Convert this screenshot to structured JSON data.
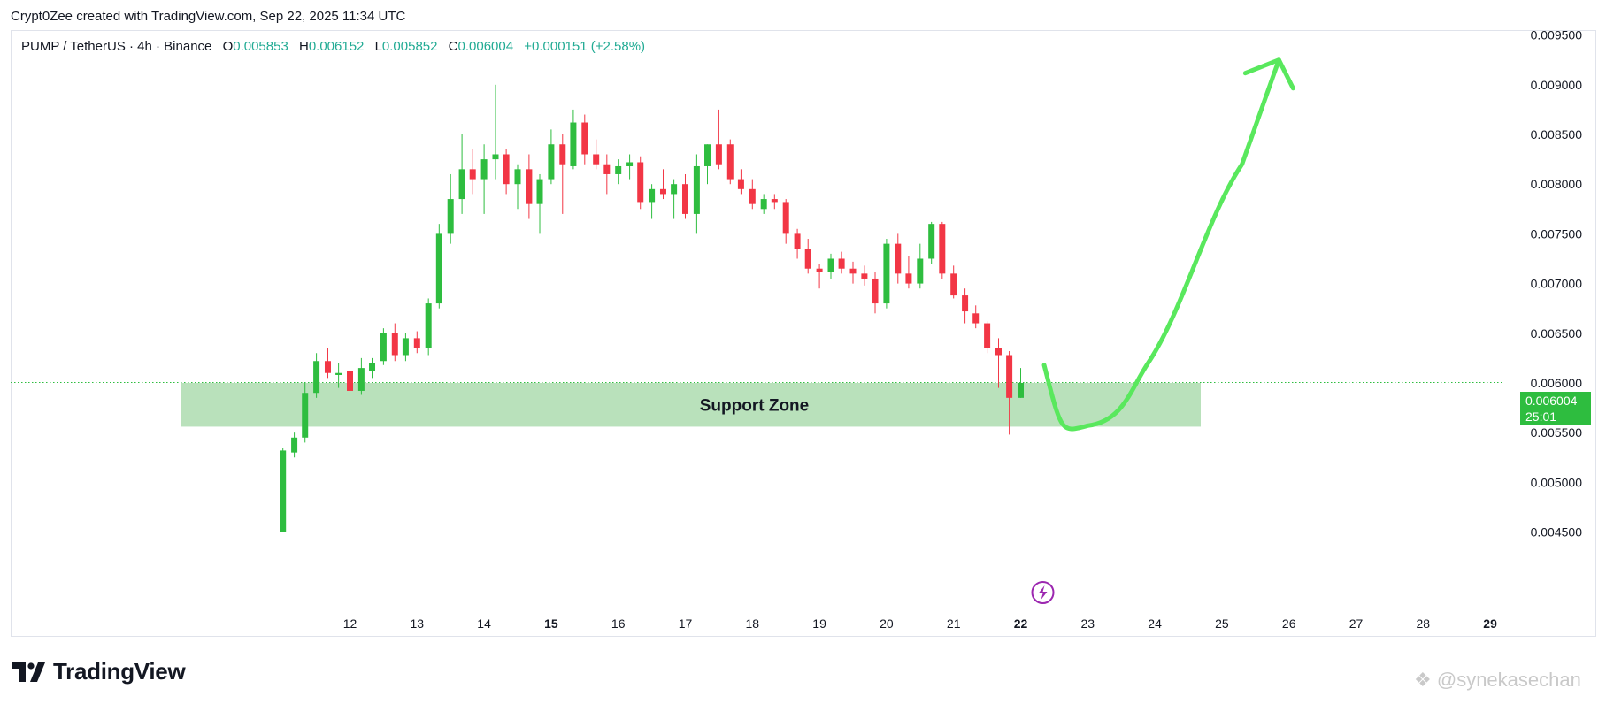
{
  "header": {
    "text": "Crypt0Zee created with TradingView.com, Sep 22, 2025 11:34 UTC"
  },
  "legend": {
    "symbol": "PUMP / TetherUS · 4h · Binance",
    "open_label": "O",
    "open": "0.005853",
    "high_label": "H",
    "high": "0.006152",
    "low_label": "L",
    "low": "0.005852",
    "close_label": "C",
    "close": "0.006004",
    "change": "+0.000151 (+2.58%)"
  },
  "price_box": {
    "price": "0.006004",
    "countdown": "25:01"
  },
  "footer": {
    "logo_text": "TradingView",
    "watermark": "@synekasechan"
  },
  "colors": {
    "up": "#2ebd3f",
    "down": "#f23645",
    "zone": "#b9e1bb",
    "arrow": "#59e85d",
    "event": "#9c27b0"
  },
  "chart_data": {
    "type": "candlestick",
    "interval": "4h",
    "ylim": [
      0.00398,
      0.00955
    ],
    "y_ticks": [
      "0.009500",
      "0.009000",
      "0.008500",
      "0.008000",
      "0.007500",
      "0.007000",
      "0.006500",
      "0.006000",
      "0.005500",
      "0.005000",
      "0.004500"
    ],
    "x_range": [
      11.55,
      29.3
    ],
    "x_ticks": [
      {
        "label": "12",
        "x": 12,
        "bold": false
      },
      {
        "label": "13",
        "x": 13,
        "bold": false
      },
      {
        "label": "14",
        "x": 14,
        "bold": false
      },
      {
        "label": "15",
        "x": 15,
        "bold": true
      },
      {
        "label": "16",
        "x": 16,
        "bold": false
      },
      {
        "label": "17",
        "x": 17,
        "bold": false
      },
      {
        "label": "18",
        "x": 18,
        "bold": false
      },
      {
        "label": "19",
        "x": 19,
        "bold": false
      },
      {
        "label": "20",
        "x": 20,
        "bold": false
      },
      {
        "label": "21",
        "x": 21,
        "bold": false
      },
      {
        "label": "22",
        "x": 22,
        "bold": true
      },
      {
        "label": "23",
        "x": 23,
        "bold": false
      },
      {
        "label": "24",
        "x": 24,
        "bold": false
      },
      {
        "label": "25",
        "x": 25,
        "bold": false
      },
      {
        "label": "26",
        "x": 26,
        "bold": false
      },
      {
        "label": "27",
        "x": 27,
        "bold": false
      },
      {
        "label": "28",
        "x": 28,
        "bold": false
      },
      {
        "label": "29",
        "x": 29,
        "bold": true
      }
    ],
    "last_price": 0.006004,
    "support_zone": {
      "label": "Support Zone",
      "low": 0.00556,
      "high": 0.006,
      "x_start": 10.5,
      "x_end": 25.7
    },
    "projection_arrow": {
      "points": [
        [
          22.35,
          0.00618
        ],
        [
          23.0,
          0.00557
        ],
        [
          23.9,
          0.0062
        ],
        [
          25.3,
          0.0082
        ],
        [
          25.85,
          0.00925
        ]
      ]
    },
    "event_marker": {
      "x": 22.33,
      "y": 0.00425
    },
    "candles": [
      {
        "t": 11.0,
        "o": 0.0045,
        "h": 0.00535,
        "l": 0.0045,
        "c": 0.00532
      },
      {
        "t": 11.17,
        "o": 0.0053,
        "h": 0.0055,
        "l": 0.00525,
        "c": 0.00545
      },
      {
        "t": 11.33,
        "o": 0.00545,
        "h": 0.006,
        "l": 0.0054,
        "c": 0.0059
      },
      {
        "t": 11.5,
        "o": 0.0059,
        "h": 0.0063,
        "l": 0.00585,
        "c": 0.00622
      },
      {
        "t": 11.67,
        "o": 0.00622,
        "h": 0.00635,
        "l": 0.00605,
        "c": 0.0061
      },
      {
        "t": 11.83,
        "o": 0.00608,
        "h": 0.0062,
        "l": 0.00595,
        "c": 0.0061
      },
      {
        "t": 12.0,
        "o": 0.00612,
        "h": 0.00618,
        "l": 0.0058,
        "c": 0.00592
      },
      {
        "t": 12.17,
        "o": 0.00592,
        "h": 0.00625,
        "l": 0.00588,
        "c": 0.00615
      },
      {
        "t": 12.33,
        "o": 0.00612,
        "h": 0.00625,
        "l": 0.00605,
        "c": 0.0062
      },
      {
        "t": 12.5,
        "o": 0.00622,
        "h": 0.00655,
        "l": 0.00618,
        "c": 0.0065
      },
      {
        "t": 12.67,
        "o": 0.0065,
        "h": 0.0066,
        "l": 0.00622,
        "c": 0.00628
      },
      {
        "t": 12.83,
        "o": 0.00628,
        "h": 0.0065,
        "l": 0.00622,
        "c": 0.00645
      },
      {
        "t": 13.0,
        "o": 0.00645,
        "h": 0.00652,
        "l": 0.0063,
        "c": 0.00635
      },
      {
        "t": 13.17,
        "o": 0.00635,
        "h": 0.00685,
        "l": 0.00628,
        "c": 0.0068
      },
      {
        "t": 13.33,
        "o": 0.0068,
        "h": 0.0076,
        "l": 0.00675,
        "c": 0.0075
      },
      {
        "t": 13.5,
        "o": 0.0075,
        "h": 0.0081,
        "l": 0.0074,
        "c": 0.00785
      },
      {
        "t": 13.67,
        "o": 0.00785,
        "h": 0.0085,
        "l": 0.0077,
        "c": 0.00815
      },
      {
        "t": 13.83,
        "o": 0.00815,
        "h": 0.00835,
        "l": 0.0079,
        "c": 0.00805
      },
      {
        "t": 14.0,
        "o": 0.00805,
        "h": 0.0084,
        "l": 0.0077,
        "c": 0.00825
      },
      {
        "t": 14.17,
        "o": 0.00825,
        "h": 0.009,
        "l": 0.00805,
        "c": 0.0083
      },
      {
        "t": 14.33,
        "o": 0.0083,
        "h": 0.00835,
        "l": 0.0079,
        "c": 0.008
      },
      {
        "t": 14.5,
        "o": 0.008,
        "h": 0.0082,
        "l": 0.00775,
        "c": 0.00815
      },
      {
        "t": 14.67,
        "o": 0.00815,
        "h": 0.0083,
        "l": 0.00765,
        "c": 0.0078
      },
      {
        "t": 14.83,
        "o": 0.0078,
        "h": 0.0081,
        "l": 0.0075,
        "c": 0.00805
      },
      {
        "t": 15.0,
        "o": 0.00805,
        "h": 0.00855,
        "l": 0.008,
        "c": 0.0084
      },
      {
        "t": 15.17,
        "o": 0.0084,
        "h": 0.0085,
        "l": 0.0077,
        "c": 0.0082
      },
      {
        "t": 15.33,
        "o": 0.00818,
        "h": 0.00875,
        "l": 0.00815,
        "c": 0.00862
      },
      {
        "t": 15.5,
        "o": 0.00862,
        "h": 0.0087,
        "l": 0.0082,
        "c": 0.0083
      },
      {
        "t": 15.67,
        "o": 0.0083,
        "h": 0.00845,
        "l": 0.00815,
        "c": 0.0082
      },
      {
        "t": 15.83,
        "o": 0.0082,
        "h": 0.0083,
        "l": 0.0079,
        "c": 0.0081
      },
      {
        "t": 16.0,
        "o": 0.0081,
        "h": 0.00825,
        "l": 0.008,
        "c": 0.00818
      },
      {
        "t": 16.17,
        "o": 0.00818,
        "h": 0.0083,
        "l": 0.00805,
        "c": 0.00822
      },
      {
        "t": 16.33,
        "o": 0.00822,
        "h": 0.00828,
        "l": 0.00775,
        "c": 0.00782
      },
      {
        "t": 16.5,
        "o": 0.00782,
        "h": 0.008,
        "l": 0.00765,
        "c": 0.00795
      },
      {
        "t": 16.67,
        "o": 0.00795,
        "h": 0.00815,
        "l": 0.00785,
        "c": 0.0079
      },
      {
        "t": 16.83,
        "o": 0.0079,
        "h": 0.00805,
        "l": 0.00765,
        "c": 0.008
      },
      {
        "t": 17.0,
        "o": 0.008,
        "h": 0.0081,
        "l": 0.00765,
        "c": 0.0077
      },
      {
        "t": 17.17,
        "o": 0.0077,
        "h": 0.0083,
        "l": 0.0075,
        "c": 0.00818
      },
      {
        "t": 17.33,
        "o": 0.00818,
        "h": 0.0084,
        "l": 0.008,
        "c": 0.0084
      },
      {
        "t": 17.5,
        "o": 0.0084,
        "h": 0.00875,
        "l": 0.00815,
        "c": 0.0082
      },
      {
        "t": 17.67,
        "o": 0.0084,
        "h": 0.00845,
        "l": 0.008,
        "c": 0.00805
      },
      {
        "t": 17.83,
        "o": 0.00805,
        "h": 0.00815,
        "l": 0.0079,
        "c": 0.00795
      },
      {
        "t": 18.0,
        "o": 0.00795,
        "h": 0.00805,
        "l": 0.00775,
        "c": 0.0078
      },
      {
        "t": 18.17,
        "o": 0.00775,
        "h": 0.0079,
        "l": 0.0077,
        "c": 0.00785
      },
      {
        "t": 18.33,
        "o": 0.00785,
        "h": 0.0079,
        "l": 0.00775,
        "c": 0.00782
      },
      {
        "t": 18.5,
        "o": 0.00782,
        "h": 0.00785,
        "l": 0.0074,
        "c": 0.0075
      },
      {
        "t": 18.67,
        "o": 0.0075,
        "h": 0.00755,
        "l": 0.00725,
        "c": 0.00735
      },
      {
        "t": 18.83,
        "o": 0.00735,
        "h": 0.00745,
        "l": 0.0071,
        "c": 0.00715
      },
      {
        "t": 19.0,
        "o": 0.00715,
        "h": 0.0072,
        "l": 0.00695,
        "c": 0.00712
      },
      {
        "t": 19.17,
        "o": 0.00712,
        "h": 0.0073,
        "l": 0.00705,
        "c": 0.00725
      },
      {
        "t": 19.33,
        "o": 0.00725,
        "h": 0.00732,
        "l": 0.0071,
        "c": 0.00715
      },
      {
        "t": 19.5,
        "o": 0.00715,
        "h": 0.00722,
        "l": 0.007,
        "c": 0.0071
      },
      {
        "t": 19.67,
        "o": 0.0071,
        "h": 0.00718,
        "l": 0.00698,
        "c": 0.00705
      },
      {
        "t": 19.83,
        "o": 0.00705,
        "h": 0.00712,
        "l": 0.0067,
        "c": 0.0068
      },
      {
        "t": 20.0,
        "o": 0.0068,
        "h": 0.00745,
        "l": 0.00675,
        "c": 0.0074
      },
      {
        "t": 20.17,
        "o": 0.0074,
        "h": 0.0075,
        "l": 0.007,
        "c": 0.0071
      },
      {
        "t": 20.33,
        "o": 0.0071,
        "h": 0.00728,
        "l": 0.00695,
        "c": 0.007
      },
      {
        "t": 20.5,
        "o": 0.007,
        "h": 0.0074,
        "l": 0.00695,
        "c": 0.00725
      },
      {
        "t": 20.67,
        "o": 0.00725,
        "h": 0.00762,
        "l": 0.0072,
        "c": 0.0076
      },
      {
        "t": 20.83,
        "o": 0.0076,
        "h": 0.00762,
        "l": 0.00705,
        "c": 0.0071
      },
      {
        "t": 21.0,
        "o": 0.0071,
        "h": 0.00718,
        "l": 0.00685,
        "c": 0.00688
      },
      {
        "t": 21.17,
        "o": 0.00688,
        "h": 0.00695,
        "l": 0.0066,
        "c": 0.00672
      },
      {
        "t": 21.33,
        "o": 0.0067,
        "h": 0.00678,
        "l": 0.00655,
        "c": 0.0066
      },
      {
        "t": 21.5,
        "o": 0.0066,
        "h": 0.00662,
        "l": 0.0063,
        "c": 0.00635
      },
      {
        "t": 21.67,
        "o": 0.00635,
        "h": 0.00645,
        "l": 0.00595,
        "c": 0.00628
      },
      {
        "t": 21.83,
        "o": 0.00628,
        "h": 0.00632,
        "l": 0.00548,
        "c": 0.00585
      },
      {
        "t": 22.0,
        "o": 0.00585,
        "h": 0.00615,
        "l": 0.00585,
        "c": 0.006
      }
    ]
  }
}
